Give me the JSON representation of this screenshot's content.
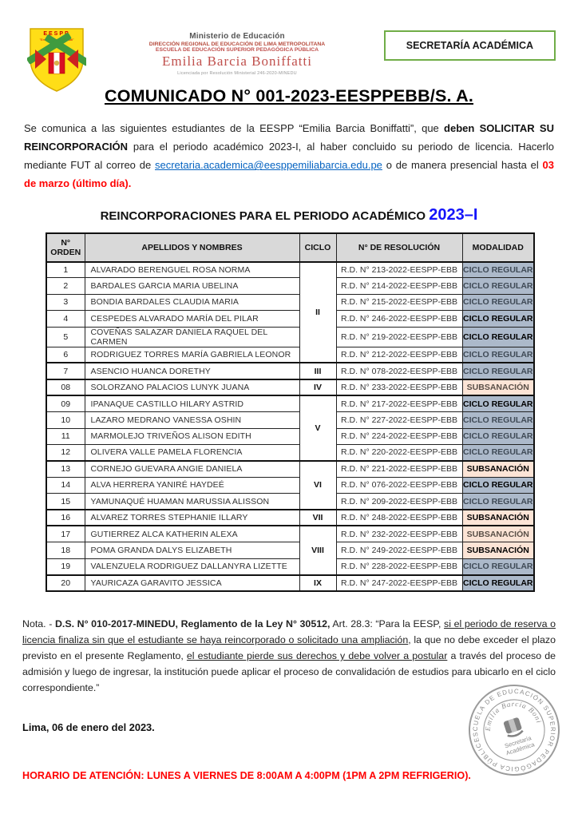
{
  "header": {
    "logo": {
      "name": "eespp-shield-logo",
      "top_text": "E E S P P",
      "banner": "\"Emilia Barcia Boniffatti\""
    },
    "ministry_title": "Ministerio de Educación",
    "line1": "DIRECCIÓN REGIONAL DE EDUCACIÓN DE LIMA METROPOLITANA",
    "line2": "ESCUELA DE EDUCACIÓN SUPERIOR PEDAGÓGICA PÚBLICA",
    "school_name": "Emilia Barcia Boniffatti",
    "license_line": "Licenciada por Resolución Ministerial 246-2020-MINEDU",
    "badge": "SECRETARÍA ACADÉMICA"
  },
  "title": "COMUNICADO N° 001-2023-EESPPEBB/S. A.",
  "intro": {
    "part1": "Se comunica a las siguientes estudiantes de la EESPP “Emilia Barcia Boniffatti”, que ",
    "bold1": "deben SOLICITAR SU REINCORPORACIÓN",
    "part2": " para el periodo académico 2023-I, al haber concluido su periodo de licencia. Hacerlo mediante FUT al correo de ",
    "email": "secretaria.academica@eesppemiliabarcia.edu.pe",
    "part3": " o de manera presencial hasta el ",
    "deadline": "03 de marzo (último día)."
  },
  "subtitle": {
    "text": "REINCORPORACIONES PARA EL PERIODO ACADÉMICO ",
    "period": "2023–I"
  },
  "table": {
    "headers": [
      "N° ORDEN",
      "APELLIDOS Y NOMBRES",
      "CICLO",
      "N° DE RESOLUCIÓN",
      "MODALIDAD"
    ],
    "rows": [
      {
        "orden": "1",
        "nombres": "ALVARADO BERENGUEL ROSA NORMA",
        "ciclo": "II",
        "ciclo_span": 6,
        "group_start": true,
        "resolucion": "R.D. N° 213-2022-EESPP-EBB",
        "modalidad": "CICLO REGULAR",
        "modalidad_style": "regular"
      },
      {
        "orden": "2",
        "nombres": "BARDALES GARCIA MARIA UBELINA",
        "resolucion": "R.D. N° 214-2022-EESPP-EBB",
        "modalidad": "CICLO REGULAR",
        "modalidad_style": "regular"
      },
      {
        "orden": "3",
        "nombres": "BONDIA BARDALES CLAUDIA MARIA",
        "resolucion": "R.D. N° 215-2022-EESPP-EBB",
        "modalidad": "CICLO REGULAR",
        "modalidad_style": "regular"
      },
      {
        "orden": "4",
        "nombres": "CESPEDES ALVARADO MARÍA DEL PILAR",
        "resolucion": "R.D. N° 246-2022-EESPP-EBB",
        "modalidad": "CICLO REGULAR",
        "modalidad_style": "regular-bold"
      },
      {
        "orden": "5",
        "nombres": "COVEÑAS SALAZAR DANIELA RAQUEL DEL CARMEN",
        "resolucion": "R.D. N° 219-2022-EESPP-EBB",
        "modalidad": "CICLO REGULAR",
        "modalidad_style": "regular-bold"
      },
      {
        "orden": "6",
        "nombres": "RODRIGUEZ TORRES MARÍA GABRIELA LEONOR",
        "resolucion": "R.D. N° 212-2022-EESPP-EBB",
        "modalidad": "CICLO REGULAR",
        "modalidad_style": "regular"
      },
      {
        "orden": "7",
        "nombres": "ASENCIO HUANCA DORETHY",
        "ciclo": "III",
        "ciclo_span": 1,
        "group_start": true,
        "resolucion": "R.D. N° 078-2022-EESPP-EBB",
        "modalidad": "CICLO REGULAR",
        "modalidad_style": "regular"
      },
      {
        "orden": "08",
        "nombres": "SOLORZANO PALACIOS LUNYK JUANA",
        "ciclo": "IV",
        "ciclo_span": 1,
        "group_start": true,
        "resolucion": "R.D. N° 233-2022-EESPP-EBB",
        "modalidad": "SUBSANACIÓN",
        "modalidad_style": "subsanacion"
      },
      {
        "orden": "09",
        "nombres": "IPANAQUE CASTILLO HILARY ASTRID",
        "ciclo": "V",
        "ciclo_span": 4,
        "group_start": true,
        "resolucion": "R.D. N° 217-2022-EESPP-EBB",
        "modalidad": "CICLO REGULAR",
        "modalidad_style": "regular-bold"
      },
      {
        "orden": "10",
        "nombres": "LAZARO MEDRANO VANESSA OSHIN",
        "resolucion": "R.D. N° 227-2022-EESPP-EBB",
        "modalidad": "CICLO REGULAR",
        "modalidad_style": "regular"
      },
      {
        "orden": "11",
        "nombres": "MARMOLEJO TRIVEÑOS ALISON EDITH",
        "resolucion": "R.D. N° 224-2022-EESPP-EBB",
        "modalidad": "CICLO REGULAR",
        "modalidad_style": "regular"
      },
      {
        "orden": "12",
        "nombres": "OLIVERA VALLE PAMELA FLORENCIA",
        "resolucion": "R.D. N° 220-2022-EESPP-EBB",
        "modalidad": "CICLO REGULAR",
        "modalidad_style": "regular"
      },
      {
        "orden": "13",
        "nombres": "CORNEJO GUEVARA ANGIE DANIELA",
        "ciclo": "VI",
        "ciclo_span": 3,
        "group_start": true,
        "resolucion": "R.D. N° 221-2022-EESPP-EBB",
        "modalidad": "SUBSANACIÓN",
        "modalidad_style": "subsanacion-bold"
      },
      {
        "orden": "14",
        "nombres": "ALVA HERRERA YANIRÉ HAYDEÉ",
        "resolucion": "R.D. N° 076-2022-EESPP-EBB",
        "modalidad": "CICLO REGULAR",
        "modalidad_style": "regular-bold"
      },
      {
        "orden": "15",
        "nombres": "YAMUNAQUÉ HUAMAN MARUSSIA ALISSON",
        "resolucion": "R.D. N° 209-2022-EESPP-EBB",
        "modalidad": "CICLO REGULAR",
        "modalidad_style": "regular"
      },
      {
        "orden": "16",
        "nombres": "ALVAREZ TORRES STEPHANIE ILLARY",
        "ciclo": "VII",
        "ciclo_span": 1,
        "group_start": true,
        "resolucion": "R.D. N° 248-2022-EESPP-EBB",
        "modalidad": "SUBSANACIÓN",
        "modalidad_style": "subsanacion-bold"
      },
      {
        "orden": "17",
        "nombres": "GUTIERREZ ALCA KATHERIN ALEXA",
        "ciclo": "VIII",
        "ciclo_span": 3,
        "group_start": true,
        "resolucion": "R.D. N° 232-2022-EESPP-EBB",
        "modalidad": "SUBSANACIÓN",
        "modalidad_style": "subsanacion"
      },
      {
        "orden": "18",
        "nombres": "POMA GRANDA DALYS ELIZABETH",
        "resolucion": "R.D. N° 249-2022-EESPP-EBB",
        "modalidad": "SUBSANACIÓN",
        "modalidad_style": "subsanacion-bold"
      },
      {
        "orden": "19",
        "nombres": "VALENZUELA RODRIGUEZ DALLANYRA LIZETTE",
        "resolucion": "R.D. N° 228-2022-EESPP-EBB",
        "modalidad": "CICLO REGULAR",
        "modalidad_style": "regular"
      },
      {
        "orden": "20",
        "nombres": "YAURICAZA GARAVITO JESSICA",
        "ciclo": "IX",
        "ciclo_span": 1,
        "group_start": true,
        "resolucion": "R.D. N° 247-2022-EESPP-EBB",
        "modalidad": "CICLO REGULAR",
        "modalidad_style": "regular-bold"
      }
    ]
  },
  "note": {
    "lead": "Nota. - ",
    "bold1": "D.S. N° 010-2017-MINEDU, Reglamento de la Ley N° 30512,",
    "part1": " Art. 28.3: “Para la EESP, ",
    "under1": "si el periodo de reserva o licencia finaliza sin que el estudiante se haya reincorporado o solicitado una ampliación",
    "part2": ", la que no debe exceder el plazo previsto en el presente Reglamento, ",
    "under2": "el estudiante pierde sus derechos y debe volver a postular",
    "part3": " a través del proceso de admisión y luego de ingresar, la institución puede aplicar el proceso de convalidación de estudios para ubicarlo en el ciclo correspondiente.”"
  },
  "dateline": "Lima, 06 de enero del 2023.",
  "schedule": "HORARIO DE ATENCIÓN: LUNES A VIERNES DE 8:00AM A 4:00PM (1PM A 2PM REFRIGERIO).",
  "stamp": {
    "ring_text": "ESCUELA DE EDUCACIÓN SUPERIOR PEDAGÓGICA PÚBLICA -",
    "inner_text": "Emilia Barcia Boniffatti",
    "center_line1": "Secretaría",
    "center_line2": "Académica"
  },
  "colors": {
    "accent_green": "#70ad47",
    "accent_blue_period": "#1414fa",
    "link_blue": "#0563c1",
    "alert_red": "#ff0000",
    "modalidad_regular_bg": "#acb9ca",
    "modalidad_subsanacion_bg": "#fce4d6",
    "table_header_bg": "#d9d9d9"
  }
}
